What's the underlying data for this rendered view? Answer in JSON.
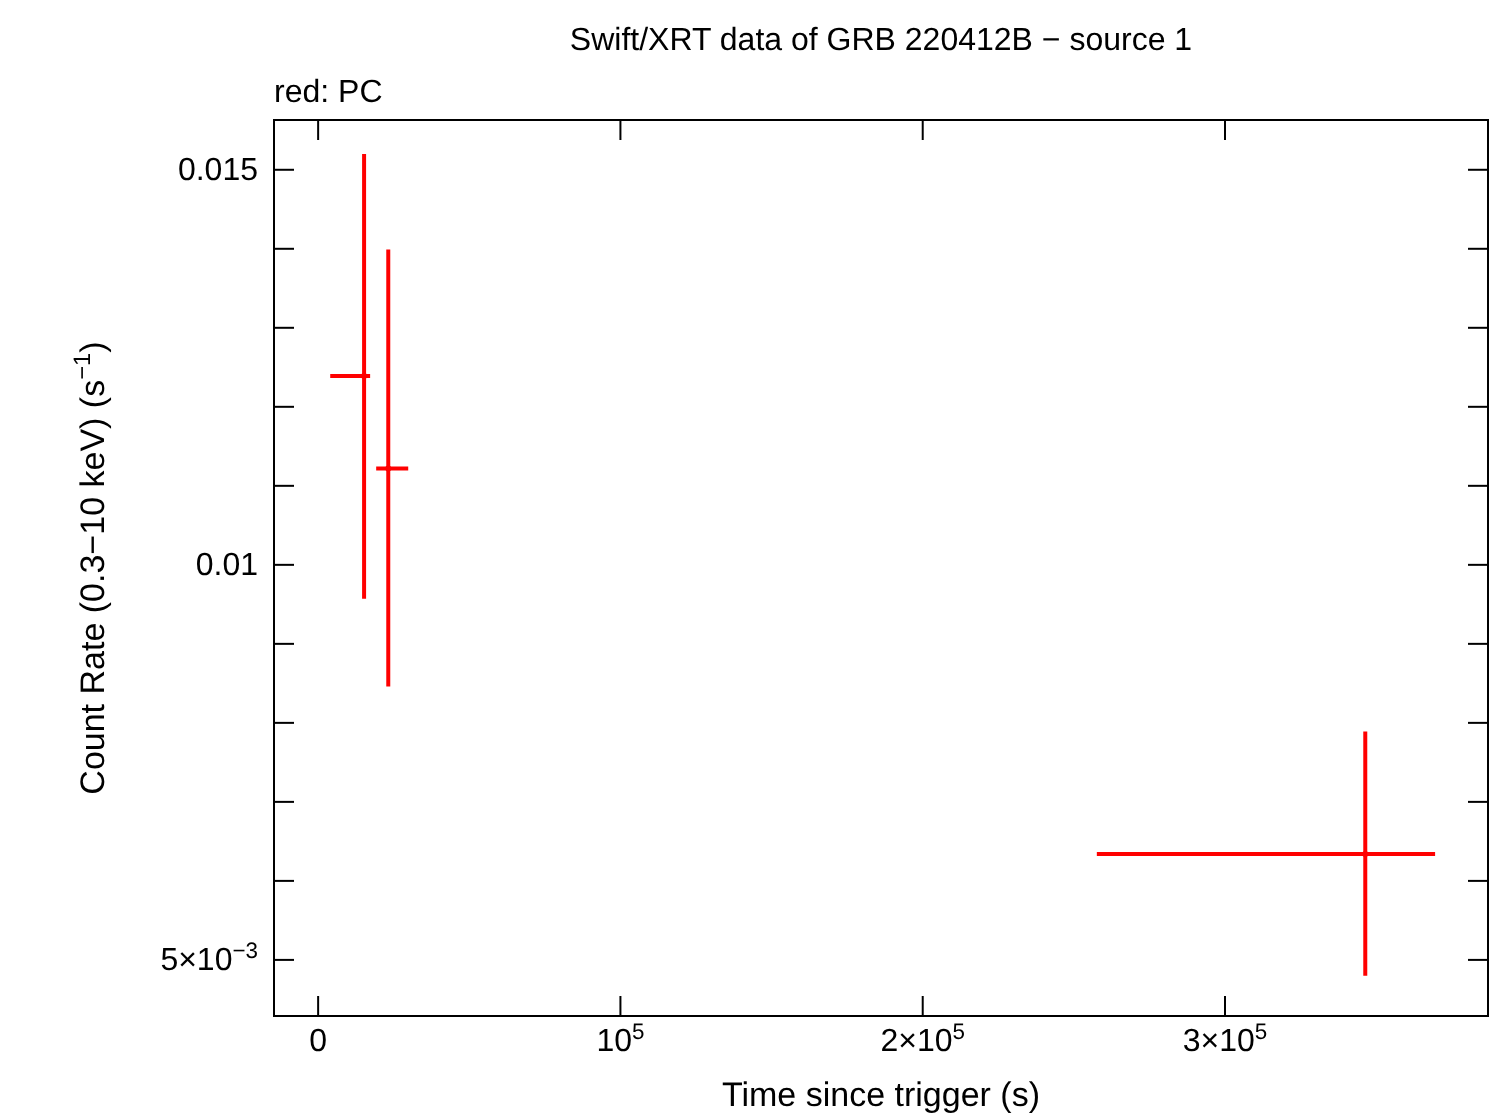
{
  "chart_data": {
    "type": "scatter",
    "title": "Swift/XRT data of GRB 220412B − source 1",
    "subtitle": "red: PC",
    "xlabel": "Time since trigger (s)",
    "ylabel": "Count Rate (0.3−10 keV) (s$^{−1}$)",
    "grid": false,
    "xlim": [
      -14600,
      387000
    ],
    "ylim": [
      0.00429,
      0.01563
    ],
    "xticks": [
      0,
      {
        "value": 100000,
        "label": "10$^{5}$"
      },
      {
        "value": 200000,
        "label": "2×10$^{5}$"
      },
      {
        "value": 300000,
        "label": "3×10$^{5}$"
      }
    ],
    "yticks": [
      {
        "value": 0.005,
        "label": "5×10$^{−3}$"
      },
      {
        "value": 0.006,
        "label": null
      },
      {
        "value": 0.007,
        "label": null
      },
      {
        "value": 0.008,
        "label": null
      },
      {
        "value": 0.009,
        "label": null
      },
      0.01,
      {
        "value": 0.011,
        "label": null
      },
      {
        "value": 0.012,
        "label": null
      },
      {
        "value": 0.013,
        "label": null
      },
      {
        "value": 0.014,
        "label": null
      },
      0.015
    ],
    "series": [
      {
        "color": "#ff0000",
        "x": [
          15200,
          23200,
          346400
        ],
        "values": [
          0.01239,
          0.01122,
          0.00634
        ],
        "xerrors": [
          [
            4000,
            17200
          ],
          [
            19200,
            29800
          ],
          [
            257600,
            369500
          ]
        ],
        "errors": [
          [
            0.00957,
            0.0152
          ],
          [
            0.00846,
            0.01399
          ],
          [
            0.0048,
            0.00789
          ]
        ]
      }
    ]
  }
}
